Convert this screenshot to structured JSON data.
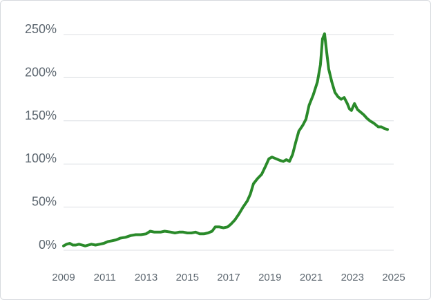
{
  "chart_data": {
    "type": "line",
    "title": "",
    "xlabel": "",
    "ylabel": "",
    "xlim": [
      2009,
      2025
    ],
    "ylim": [
      0,
      250
    ],
    "grid": {
      "horizontal": true,
      "vertical": false
    },
    "x_ticks": [
      {
        "value": 2009,
        "label": "2009"
      },
      {
        "value": 2011,
        "label": "2011"
      },
      {
        "value": 2013,
        "label": "2013"
      },
      {
        "value": 2015,
        "label": "2015"
      },
      {
        "value": 2017,
        "label": "2017"
      },
      {
        "value": 2019,
        "label": "2019"
      },
      {
        "value": 2021,
        "label": "2021"
      },
      {
        "value": 2023,
        "label": "2023"
      },
      {
        "value": 2025,
        "label": "2025"
      }
    ],
    "y_ticks": [
      {
        "value": 0,
        "label": "0%"
      },
      {
        "value": 50,
        "label": "50%"
      },
      {
        "value": 100,
        "label": "100%"
      },
      {
        "value": 150,
        "label": "150%"
      },
      {
        "value": 200,
        "label": "200%"
      },
      {
        "value": 250,
        "label": "250%"
      }
    ],
    "series": [
      {
        "color": "#2a8a2a",
        "x": [
          2009.0,
          2009.15,
          2009.3,
          2009.45,
          2009.6,
          2009.75,
          2009.9,
          2010.05,
          2010.2,
          2010.35,
          2010.55,
          2010.75,
          2010.95,
          2011.15,
          2011.35,
          2011.55,
          2011.75,
          2012.0,
          2012.25,
          2012.5,
          2012.75,
          2013.0,
          2013.2,
          2013.4,
          2013.5,
          2013.7,
          2013.9,
          2014.2,
          2014.4,
          2014.6,
          2014.8,
          2015.0,
          2015.2,
          2015.4,
          2015.6,
          2015.8,
          2016.0,
          2016.2,
          2016.35,
          2016.55,
          2016.75,
          2016.95,
          2017.1,
          2017.3,
          2017.5,
          2017.7,
          2017.9,
          2018.05,
          2018.2,
          2018.4,
          2018.6,
          2018.8,
          2018.95,
          2019.1,
          2019.3,
          2019.5,
          2019.65,
          2019.8,
          2019.95,
          2020.1,
          2020.25,
          2020.4,
          2020.6,
          2020.75,
          2020.9,
          2021.1,
          2021.3,
          2021.45,
          2021.55,
          2021.65,
          2021.75,
          2021.85,
          2022.0,
          2022.15,
          2022.3,
          2022.45,
          2022.6,
          2022.75,
          2022.85,
          2022.95,
          2023.1,
          2023.25,
          2023.4,
          2023.55,
          2023.7,
          2023.85,
          2024.05,
          2024.25,
          2024.4,
          2024.55,
          2024.7
        ],
        "y": [
          5,
          7,
          8,
          6,
          6,
          7,
          6,
          5,
          6,
          7,
          6,
          7,
          8,
          10,
          11,
          12,
          14,
          15,
          17,
          18,
          18,
          19,
          22,
          21,
          21,
          21,
          22,
          21,
          20,
          21,
          21,
          20,
          20,
          21,
          19,
          19,
          20,
          22,
          27,
          27,
          26,
          27,
          30,
          35,
          42,
          50,
          57,
          65,
          77,
          83,
          88,
          98,
          106,
          108,
          106,
          104,
          103,
          105,
          103,
          111,
          125,
          138,
          145,
          152,
          168,
          180,
          195,
          215,
          245,
          251,
          230,
          210,
          195,
          183,
          178,
          175,
          177,
          170,
          164,
          162,
          170,
          163,
          160,
          157,
          153,
          150,
          147,
          143,
          143,
          141,
          140
        ]
      }
    ]
  }
}
